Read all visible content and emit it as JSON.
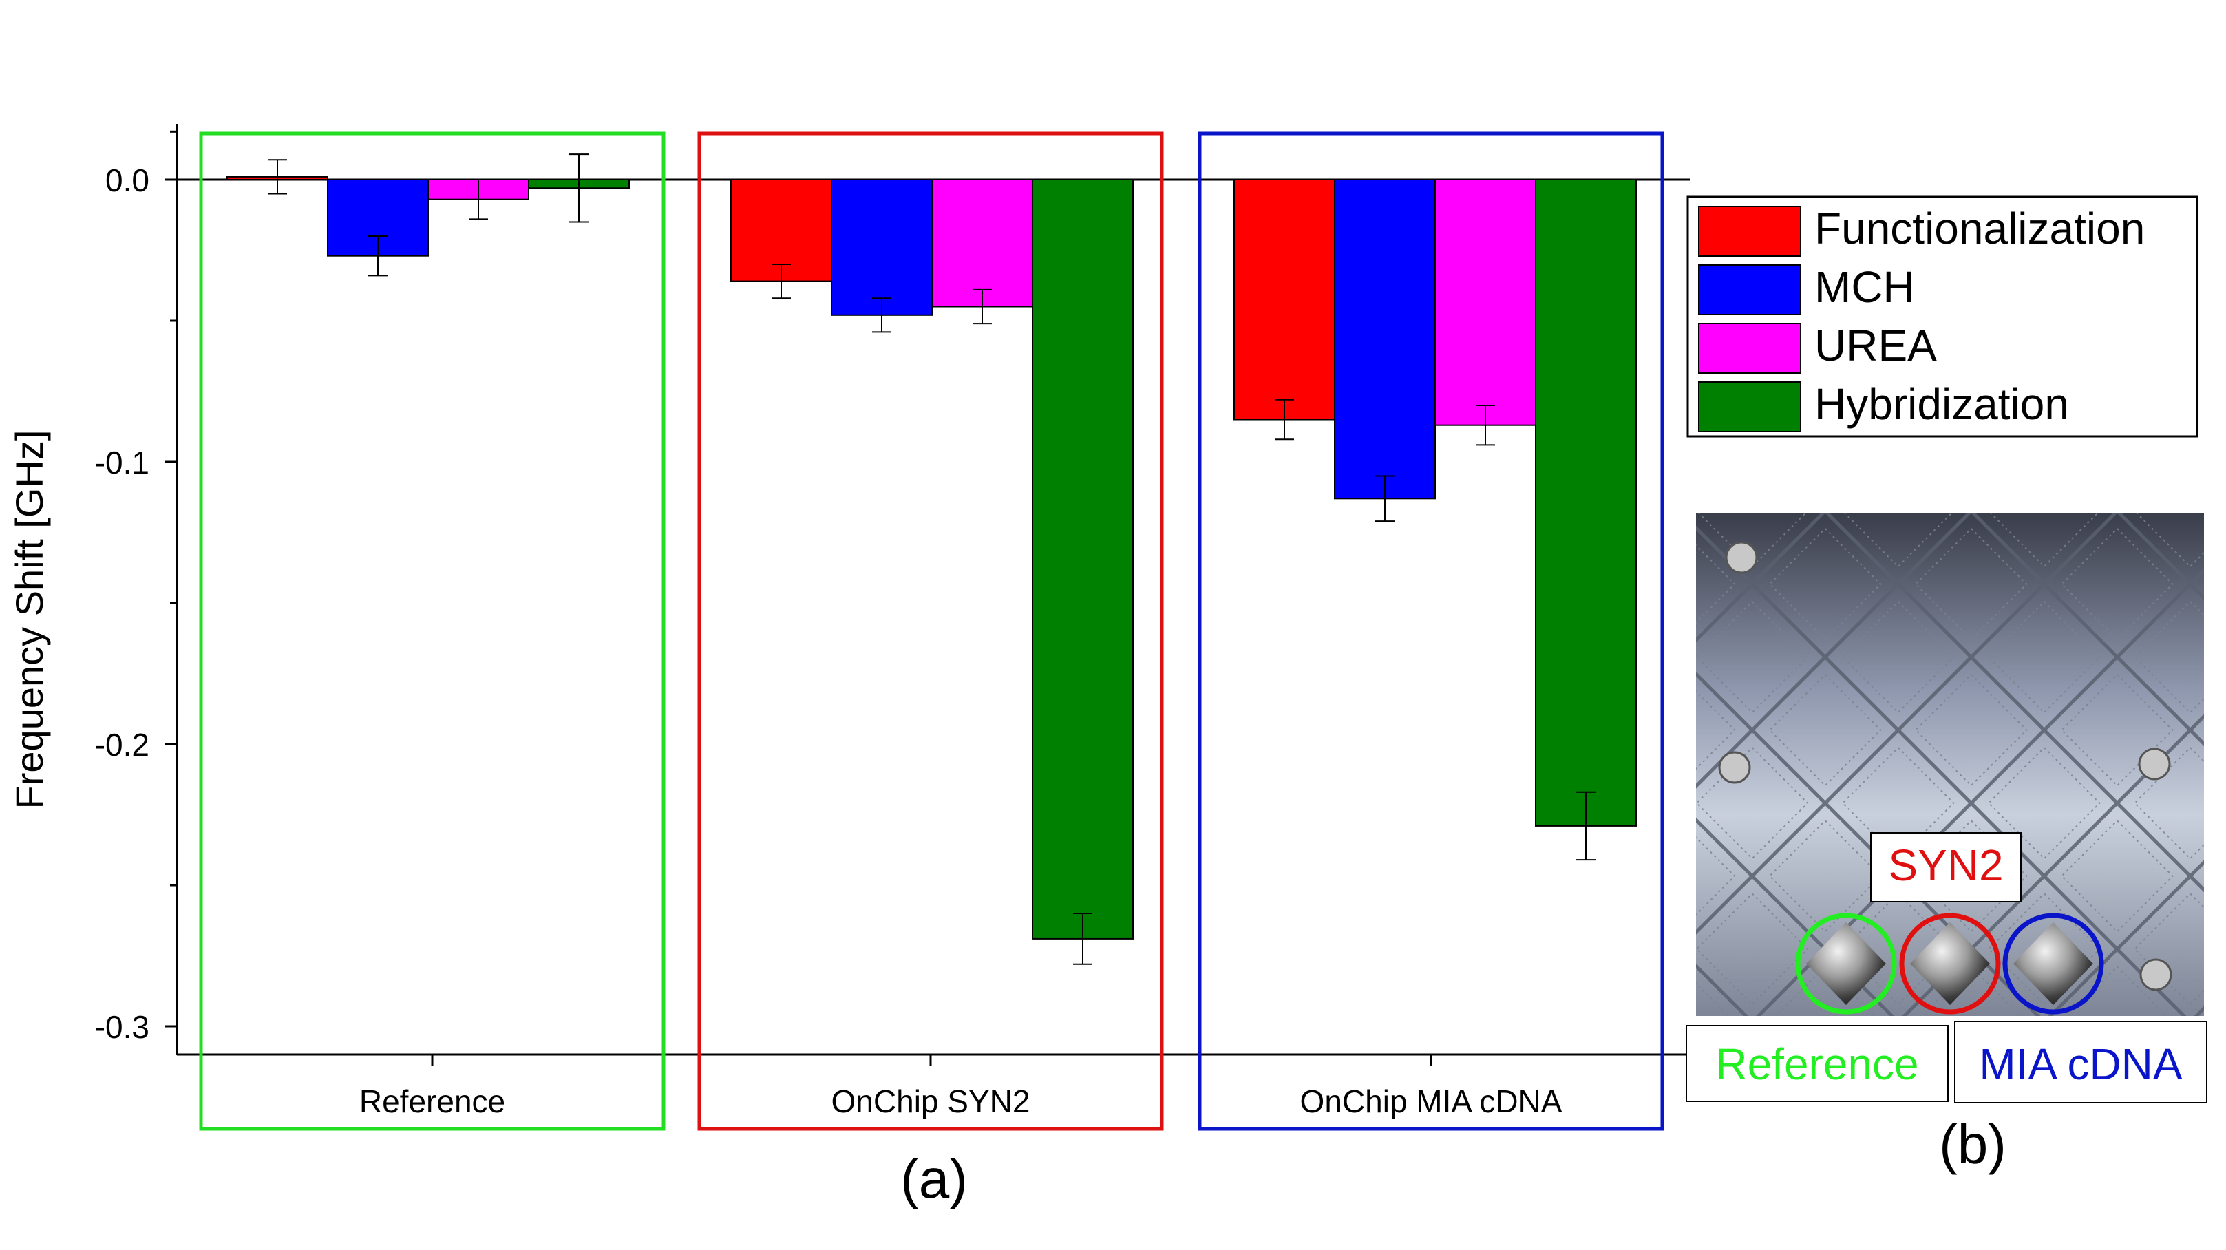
{
  "chart_data": {
    "type": "bar",
    "title": "",
    "xlabel": "",
    "ylabel": "Frequency Shift [GHz]",
    "ylim": [
      -0.31,
      0.02
    ],
    "yticks": [
      "0.0",
      "-0.1",
      "-0.2",
      "-0.3"
    ],
    "ytick_values": [
      0.0,
      -0.1,
      -0.2,
      -0.3
    ],
    "grid": false,
    "legend_position": "top-right",
    "categories": [
      "Reference",
      "OnChip SYN2",
      "OnChip MIA cDNA"
    ],
    "category_frame_colors": [
      "#22dd22",
      "#dd1111",
      "#0a14c8"
    ],
    "series": [
      {
        "name": "Functionalization",
        "color": "#ff0000",
        "values": [
          0.001,
          -0.036,
          -0.085
        ],
        "errors": [
          0.006,
          0.006,
          0.007
        ]
      },
      {
        "name": "MCH",
        "color": "#0000ff",
        "values": [
          -0.027,
          -0.048,
          -0.113
        ],
        "errors": [
          0.007,
          0.006,
          0.008
        ]
      },
      {
        "name": "UREA",
        "color": "#ff00ff",
        "values": [
          -0.007,
          -0.045,
          -0.087
        ],
        "errors": [
          0.007,
          0.006,
          0.007
        ]
      },
      {
        "name": "Hybridization",
        "color": "#008000",
        "values": [
          -0.003,
          -0.269,
          -0.229
        ],
        "errors": [
          0.012,
          0.009,
          0.012
        ]
      }
    ],
    "panel_labels": [
      "(a)",
      "(b)"
    ]
  },
  "photo": {
    "label_syn2": "SYN2",
    "label_reference": "Reference",
    "label_mia": "MIA cDNA",
    "color_syn2": "#e01010",
    "color_reference": "#22ee22",
    "color_mia": "#0a14c8"
  }
}
